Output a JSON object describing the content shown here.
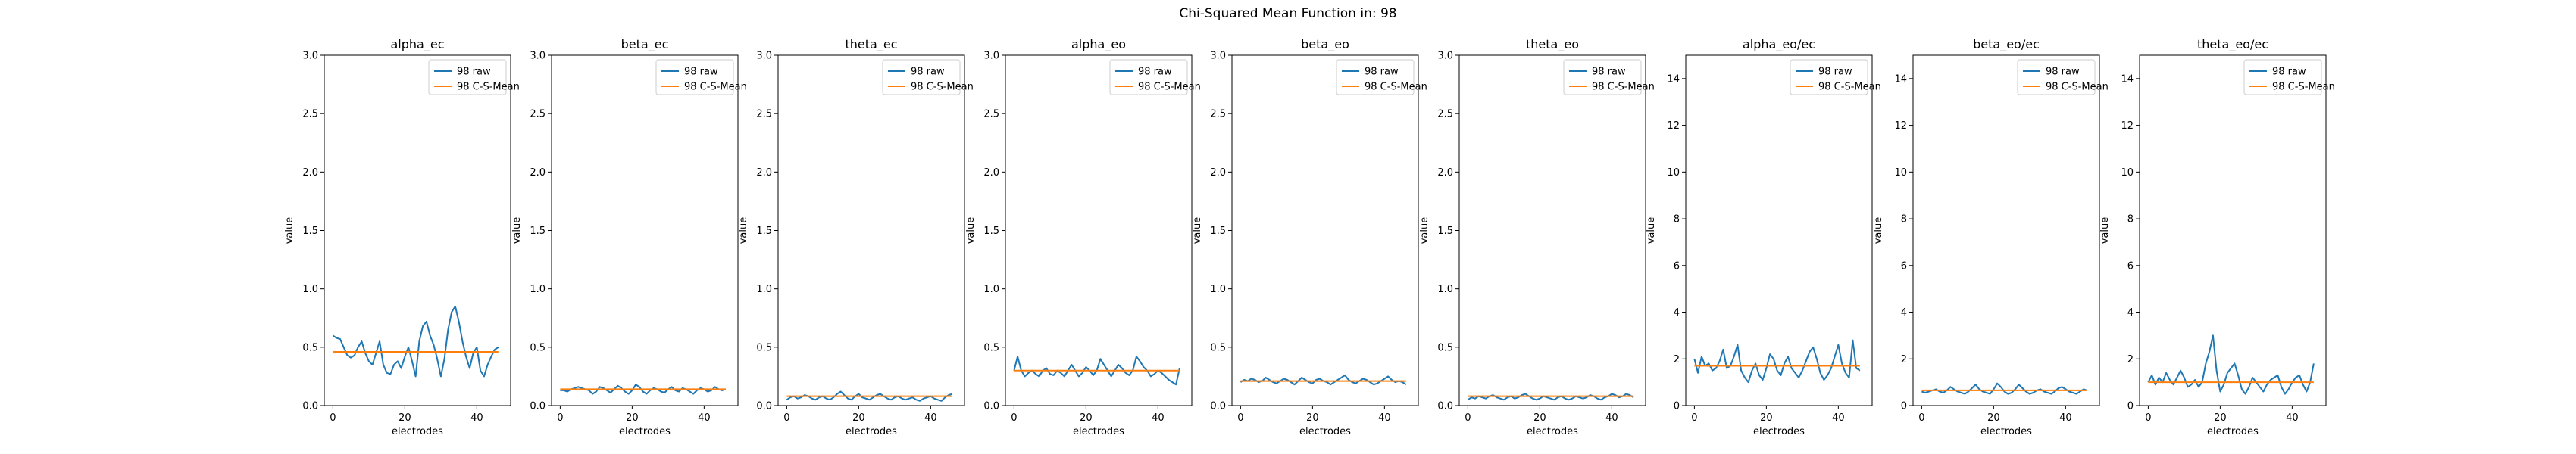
{
  "figure_title": "Chi-Squared Mean Function in: 98",
  "colors": {
    "raw": "#1f77b4",
    "mean": "#ff7f0e"
  },
  "chart_data": [
    {
      "type": "line",
      "title": "alpha_ec",
      "xlabel": "electrodes",
      "ylabel": "value",
      "xlim": [
        -2.4,
        49.4
      ],
      "ylim": [
        0,
        3
      ],
      "xticks": [
        0,
        20,
        40
      ],
      "yticks": [
        0.0,
        0.5,
        1.0,
        1.5,
        2.0,
        2.5,
        3.0
      ],
      "legend": "top-right",
      "grid": false,
      "series": [
        {
          "name": "98 raw",
          "values": [
            0.6,
            0.58,
            0.57,
            0.5,
            0.43,
            0.41,
            0.43,
            0.5,
            0.55,
            0.45,
            0.38,
            0.35,
            0.45,
            0.55,
            0.35,
            0.28,
            0.27,
            0.35,
            0.38,
            0.32,
            0.42,
            0.5,
            0.38,
            0.25,
            0.55,
            0.68,
            0.72,
            0.6,
            0.52,
            0.4,
            0.25,
            0.4,
            0.65,
            0.8,
            0.85,
            0.72,
            0.55,
            0.42,
            0.32,
            0.45,
            0.5,
            0.3,
            0.25,
            0.35,
            0.42,
            0.48,
            0.5
          ]
        },
        {
          "name": "98 C-S-Mean",
          "values": [
            0.46,
            0.46
          ]
        }
      ]
    },
    {
      "type": "line",
      "title": "beta_ec",
      "xlabel": "electrodes",
      "ylabel": "value",
      "xlim": [
        -2.4,
        49.4
      ],
      "ylim": [
        0,
        3
      ],
      "xticks": [
        0,
        20,
        40
      ],
      "yticks": [
        0.0,
        0.5,
        1.0,
        1.5,
        2.0,
        2.5,
        3.0
      ],
      "legend": "top-right",
      "grid": false,
      "series": [
        {
          "name": "98 raw",
          "values": [
            0.13,
            0.13,
            0.12,
            0.14,
            0.15,
            0.16,
            0.15,
            0.14,
            0.13,
            0.1,
            0.12,
            0.16,
            0.15,
            0.13,
            0.11,
            0.14,
            0.17,
            0.15,
            0.12,
            0.1,
            0.13,
            0.18,
            0.16,
            0.12,
            0.1,
            0.13,
            0.15,
            0.14,
            0.12,
            0.11,
            0.14,
            0.16,
            0.13,
            0.12,
            0.15,
            0.14,
            0.12,
            0.1,
            0.13,
            0.15,
            0.14,
            0.12,
            0.13,
            0.16,
            0.14,
            0.13,
            0.14
          ]
        },
        {
          "name": "98 C-S-Mean",
          "values": [
            0.14,
            0.14
          ]
        }
      ]
    },
    {
      "type": "line",
      "title": "theta_ec",
      "xlabel": "electrodes",
      "ylabel": "value",
      "xlim": [
        -2.4,
        49.4
      ],
      "ylim": [
        0,
        3
      ],
      "xticks": [
        0,
        20,
        40
      ],
      "yticks": [
        0.0,
        0.5,
        1.0,
        1.5,
        2.0,
        2.5,
        3.0
      ],
      "legend": "top-right",
      "grid": false,
      "series": [
        {
          "name": "98 raw",
          "values": [
            0.05,
            0.07,
            0.08,
            0.06,
            0.07,
            0.09,
            0.08,
            0.06,
            0.05,
            0.07,
            0.08,
            0.06,
            0.05,
            0.07,
            0.1,
            0.12,
            0.09,
            0.06,
            0.05,
            0.08,
            0.1,
            0.07,
            0.06,
            0.05,
            0.07,
            0.09,
            0.1,
            0.08,
            0.06,
            0.05,
            0.07,
            0.08,
            0.06,
            0.05,
            0.06,
            0.07,
            0.05,
            0.04,
            0.06,
            0.07,
            0.08,
            0.06,
            0.05,
            0.04,
            0.07,
            0.09,
            0.1
          ]
        },
        {
          "name": "98 C-S-Mean",
          "values": [
            0.08,
            0.08
          ]
        }
      ]
    },
    {
      "type": "line",
      "title": "alpha_eo",
      "xlabel": "electrodes",
      "ylabel": "value",
      "xlim": [
        -2.4,
        49.4
      ],
      "ylim": [
        0,
        3
      ],
      "xticks": [
        0,
        20,
        40
      ],
      "yticks": [
        0.0,
        0.5,
        1.0,
        1.5,
        2.0,
        2.5,
        3.0
      ],
      "legend": "top-right",
      "grid": false,
      "series": [
        {
          "name": "98 raw",
          "values": [
            0.3,
            0.42,
            0.3,
            0.25,
            0.28,
            0.3,
            0.27,
            0.25,
            0.3,
            0.32,
            0.27,
            0.26,
            0.3,
            0.28,
            0.25,
            0.3,
            0.35,
            0.3,
            0.25,
            0.28,
            0.33,
            0.3,
            0.26,
            0.3,
            0.4,
            0.35,
            0.3,
            0.25,
            0.3,
            0.35,
            0.32,
            0.28,
            0.26,
            0.3,
            0.42,
            0.38,
            0.33,
            0.3,
            0.25,
            0.27,
            0.3,
            0.28,
            0.25,
            0.22,
            0.2,
            0.18,
            0.32
          ]
        },
        {
          "name": "98 C-S-Mean",
          "values": [
            0.3,
            0.3
          ]
        }
      ]
    },
    {
      "type": "line",
      "title": "beta_eo",
      "xlabel": "electrodes",
      "ylabel": "value",
      "xlim": [
        -2.4,
        49.4
      ],
      "ylim": [
        0,
        3
      ],
      "xticks": [
        0,
        20,
        40
      ],
      "yticks": [
        0.0,
        0.5,
        1.0,
        1.5,
        2.0,
        2.5,
        3.0
      ],
      "legend": "top-right",
      "grid": false,
      "series": [
        {
          "name": "98 raw",
          "values": [
            0.2,
            0.22,
            0.21,
            0.23,
            0.22,
            0.2,
            0.21,
            0.24,
            0.22,
            0.2,
            0.19,
            0.21,
            0.23,
            0.22,
            0.2,
            0.18,
            0.21,
            0.24,
            0.22,
            0.2,
            0.19,
            0.22,
            0.23,
            0.21,
            0.2,
            0.18,
            0.2,
            0.22,
            0.24,
            0.26,
            0.22,
            0.2,
            0.19,
            0.21,
            0.23,
            0.22,
            0.2,
            0.18,
            0.19,
            0.21,
            0.23,
            0.25,
            0.22,
            0.2,
            0.21,
            0.2,
            0.18
          ]
        },
        {
          "name": "98 C-S-Mean",
          "values": [
            0.21,
            0.21
          ]
        }
      ]
    },
    {
      "type": "line",
      "title": "theta_eo",
      "xlabel": "electrodes",
      "ylabel": "value",
      "xlim": [
        -2.4,
        49.4
      ],
      "ylim": [
        0,
        3
      ],
      "xticks": [
        0,
        20,
        40
      ],
      "yticks": [
        0.0,
        0.5,
        1.0,
        1.5,
        2.0,
        2.5,
        3.0
      ],
      "legend": "top-right",
      "grid": false,
      "series": [
        {
          "name": "98 raw",
          "values": [
            0.05,
            0.07,
            0.06,
            0.08,
            0.07,
            0.06,
            0.08,
            0.09,
            0.07,
            0.06,
            0.05,
            0.07,
            0.08,
            0.06,
            0.07,
            0.09,
            0.1,
            0.08,
            0.06,
            0.05,
            0.06,
            0.08,
            0.07,
            0.06,
            0.05,
            0.07,
            0.08,
            0.06,
            0.05,
            0.06,
            0.08,
            0.07,
            0.06,
            0.07,
            0.09,
            0.08,
            0.06,
            0.05,
            0.07,
            0.08,
            0.1,
            0.09,
            0.07,
            0.08,
            0.1,
            0.09,
            0.07
          ]
        },
        {
          "name": "98 C-S-Mean",
          "values": [
            0.08,
            0.08
          ]
        }
      ]
    },
    {
      "type": "line",
      "title": "alpha_eo/ec",
      "xlabel": "electrodes",
      "ylabel": "value",
      "xlim": [
        -2.4,
        49.4
      ],
      "ylim": [
        0,
        15
      ],
      "xticks": [
        0,
        20,
        40
      ],
      "yticks": [
        0,
        2,
        4,
        6,
        8,
        10,
        12,
        14
      ],
      "legend": "top-right",
      "grid": false,
      "series": [
        {
          "name": "98 raw",
          "values": [
            2.0,
            1.4,
            2.1,
            1.7,
            1.8,
            1.5,
            1.6,
            1.9,
            2.4,
            1.6,
            1.7,
            2.1,
            2.6,
            1.5,
            1.2,
            1.0,
            1.5,
            1.8,
            1.3,
            1.1,
            1.6,
            2.2,
            2.0,
            1.5,
            1.3,
            1.8,
            2.1,
            1.6,
            1.4,
            1.2,
            1.5,
            1.9,
            2.3,
            2.5,
            2.0,
            1.4,
            1.1,
            1.3,
            1.6,
            2.1,
            2.6,
            1.8,
            1.4,
            1.2,
            2.8,
            1.6,
            1.5
          ]
        },
        {
          "name": "98 C-S-Mean",
          "values": [
            1.7,
            1.7
          ]
        }
      ]
    },
    {
      "type": "line",
      "title": "beta_eo/ec",
      "xlabel": "electrodes",
      "ylabel": "value",
      "xlim": [
        -2.4,
        49.4
      ],
      "ylim": [
        0,
        15
      ],
      "xticks": [
        0,
        20,
        40
      ],
      "yticks": [
        0,
        2,
        4,
        6,
        8,
        10,
        12,
        14
      ],
      "legend": "top-right",
      "grid": false,
      "series": [
        {
          "name": "98 raw",
          "values": [
            0.6,
            0.55,
            0.6,
            0.65,
            0.7,
            0.6,
            0.55,
            0.65,
            0.8,
            0.7,
            0.6,
            0.55,
            0.5,
            0.6,
            0.75,
            0.9,
            0.7,
            0.6,
            0.55,
            0.5,
            0.7,
            0.95,
            0.8,
            0.6,
            0.5,
            0.55,
            0.7,
            0.9,
            0.75,
            0.6,
            0.5,
            0.55,
            0.65,
            0.7,
            0.6,
            0.55,
            0.5,
            0.6,
            0.75,
            0.8,
            0.7,
            0.6,
            0.55,
            0.5,
            0.6,
            0.7,
            0.65
          ]
        },
        {
          "name": "98 C-S-Mean",
          "values": [
            0.65,
            0.65
          ]
        }
      ]
    },
    {
      "type": "line",
      "title": "theta_eo/ec",
      "xlabel": "electrodes",
      "ylabel": "value",
      "xlim": [
        -2.4,
        49.4
      ],
      "ylim": [
        0,
        15
      ],
      "xticks": [
        0,
        20,
        40
      ],
      "yticks": [
        0,
        2,
        4,
        6,
        8,
        10,
        12,
        14
      ],
      "legend": "top-right",
      "grid": false,
      "series": [
        {
          "name": "98 raw",
          "values": [
            1.0,
            1.3,
            0.9,
            1.2,
            1.0,
            1.4,
            1.1,
            0.9,
            1.2,
            1.5,
            1.2,
            0.8,
            0.9,
            1.1,
            0.8,
            1.0,
            1.8,
            2.3,
            3.0,
            1.5,
            0.6,
            0.9,
            1.4,
            1.6,
            1.8,
            1.3,
            0.7,
            0.5,
            0.8,
            1.2,
            1.0,
            0.8,
            0.6,
            0.9,
            1.1,
            1.2,
            1.3,
            0.8,
            0.5,
            0.7,
            1.0,
            1.2,
            1.3,
            0.9,
            0.6,
            1.0,
            1.8
          ]
        },
        {
          "name": "98 C-S-Mean",
          "values": [
            1.0,
            1.0
          ]
        }
      ]
    }
  ]
}
